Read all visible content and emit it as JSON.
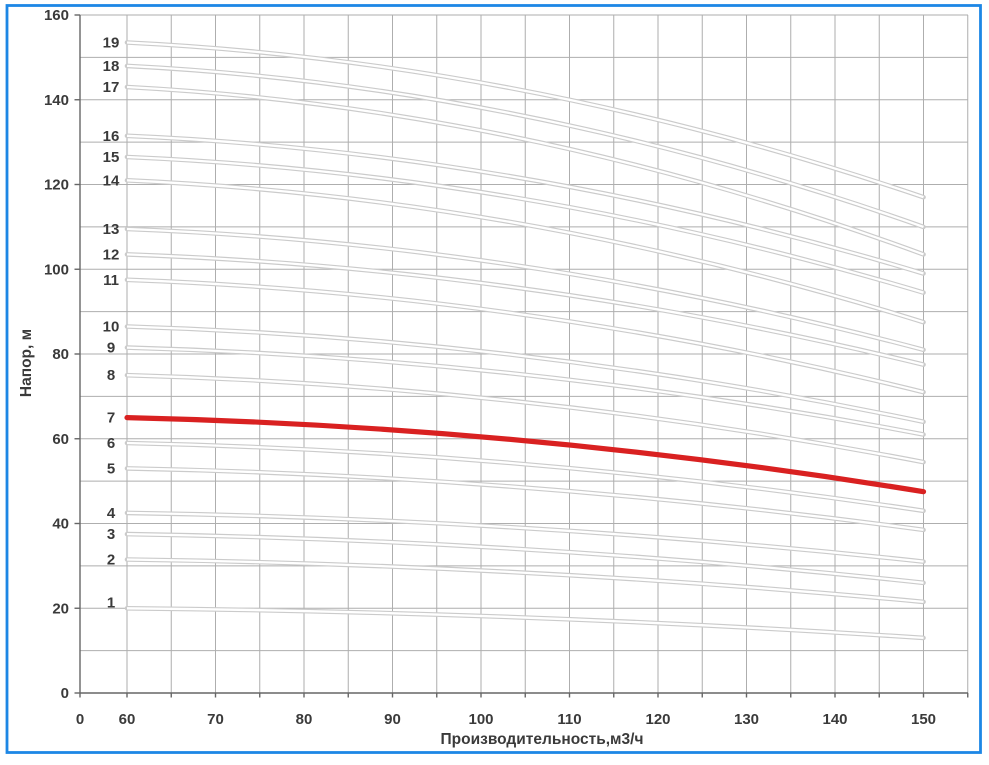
{
  "chart_data": {
    "type": "line",
    "title": "",
    "xlabel": "Производительность,м3/ч",
    "ylabel": "Напор, м",
    "x_tick_labels": [
      "0",
      "60",
      "70",
      "80",
      "90",
      "100",
      "110",
      "120",
      "130",
      "140",
      "150"
    ],
    "y_tick_labels": [
      "0",
      "20",
      "40",
      "60",
      "80",
      "100",
      "120",
      "140",
      "160"
    ],
    "x_axis": {
      "data_range": [
        60,
        150
      ],
      "plot_range": [
        55,
        155
      ],
      "minor_grid_step": 5,
      "broken_at_origin": true
    },
    "y_axis": {
      "range": [
        0,
        160
      ],
      "grid_step": 10,
      "label_step": 20
    },
    "grid": true,
    "legend_position": "numbers-at-curve-start",
    "highlighted_curve": "7",
    "curve_shape": "quadratic droop from head_at_60 to head_at_150",
    "series": [
      {
        "label": "1",
        "head_at_60": 20,
        "head_at_150": 13,
        "label_dy": -6
      },
      {
        "label": "2",
        "head_at_60": 31.5,
        "head_at_150": 21.5
      },
      {
        "label": "3",
        "head_at_60": 37.5,
        "head_at_150": 26
      },
      {
        "label": "4",
        "head_at_60": 42.5,
        "head_at_150": 31
      },
      {
        "label": "5",
        "head_at_60": 53,
        "head_at_150": 38.5
      },
      {
        "label": "6",
        "head_at_60": 59,
        "head_at_150": 43
      },
      {
        "label": "7",
        "head_at_60": 65,
        "head_at_150": 47.5
      },
      {
        "label": "8",
        "head_at_60": 75,
        "head_at_150": 54.5
      },
      {
        "label": "9",
        "head_at_60": 81.5,
        "head_at_150": 61
      },
      {
        "label": "10",
        "head_at_60": 86.5,
        "head_at_150": 64
      },
      {
        "label": "11",
        "head_at_60": 97.5,
        "head_at_150": 71
      },
      {
        "label": "12",
        "head_at_60": 103.5,
        "head_at_150": 77.5
      },
      {
        "label": "13",
        "head_at_60": 109.5,
        "head_at_150": 81
      },
      {
        "label": "14",
        "head_at_60": 121,
        "head_at_150": 87.5
      },
      {
        "label": "15",
        "head_at_60": 126.5,
        "head_at_150": 94.5
      },
      {
        "label": "16",
        "head_at_60": 131.5,
        "head_at_150": 99
      },
      {
        "label": "17",
        "head_at_60": 143,
        "head_at_150": 103.5
      },
      {
        "label": "18",
        "head_at_60": 148,
        "head_at_150": 110
      },
      {
        "label": "19",
        "head_at_60": 153.5,
        "head_at_150": 117
      }
    ]
  },
  "colors": {
    "frame": "#1d87e5",
    "grid": "#aeaeae",
    "axis": "#666666",
    "curve": "#cbcbcb",
    "curve_core": "#ffffff",
    "highlight": "#d92121",
    "text": "#3a3a3a"
  }
}
